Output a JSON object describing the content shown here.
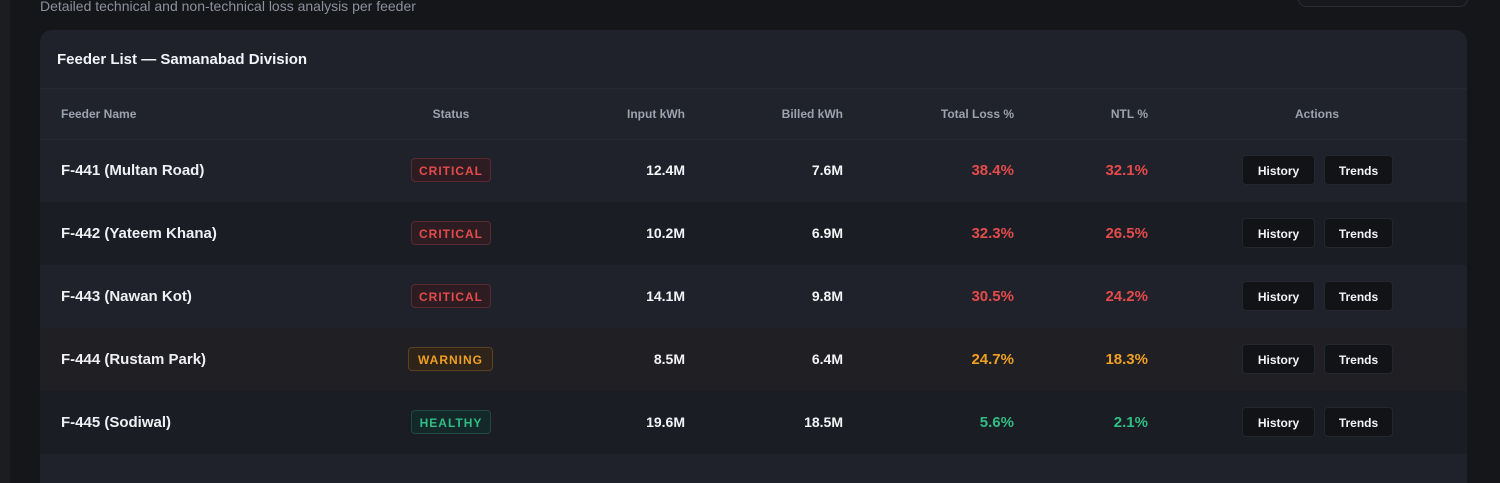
{
  "header": {
    "subtitle": "Detailed technical and non-technical loss analysis per feeder"
  },
  "card": {
    "title": "Feeder List — Samanabad Division"
  },
  "table": {
    "columns": [
      "Feeder Name",
      "Status",
      "Input kWh",
      "Billed kWh",
      "Total Loss %",
      "NTL %",
      "Actions"
    ],
    "rows": [
      {
        "name": "F-441 (Multan Road)",
        "status": "CRITICAL",
        "status_level": "critical",
        "input": "12.4M",
        "billed": "7.6M",
        "total_loss": "38.4%",
        "ntl": "32.1%",
        "history_label": "History",
        "trends_label": "Trends"
      },
      {
        "name": "F-442 (Yateem Khana)",
        "status": "CRITICAL",
        "status_level": "critical",
        "input": "10.2M",
        "billed": "6.9M",
        "total_loss": "32.3%",
        "ntl": "26.5%",
        "history_label": "History",
        "trends_label": "Trends"
      },
      {
        "name": "F-443 (Nawan Kot)",
        "status": "CRITICAL",
        "status_level": "critical",
        "input": "14.1M",
        "billed": "9.8M",
        "total_loss": "30.5%",
        "ntl": "24.2%",
        "history_label": "History",
        "trends_label": "Trends"
      },
      {
        "name": "F-444 (Rustam Park)",
        "status": "WARNING",
        "status_level": "warning",
        "input": "8.5M",
        "billed": "6.4M",
        "total_loss": "24.7%",
        "ntl": "18.3%",
        "history_label": "History",
        "trends_label": "Trends"
      },
      {
        "name": "F-445 (Sodiwal)",
        "status": "HEALTHY",
        "status_level": "healthy",
        "input": "19.6M",
        "billed": "18.5M",
        "total_loss": "5.6%",
        "ntl": "2.1%",
        "history_label": "History",
        "trends_label": "Trends"
      }
    ]
  },
  "colors": {
    "critical": "#e54b4b",
    "warning": "#f0a020",
    "healthy": "#2fbe83"
  }
}
